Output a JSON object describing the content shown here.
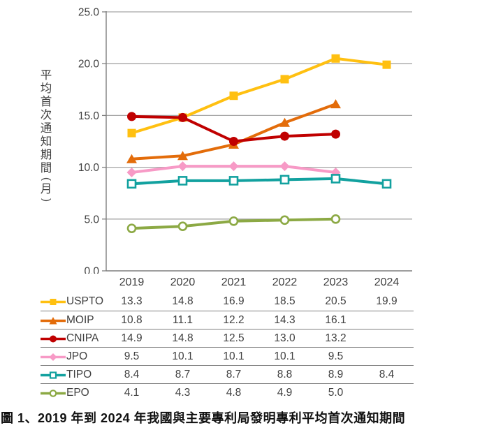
{
  "chart_data": {
    "type": "line",
    "title": "",
    "categories": [
      "2019",
      "2020",
      "2021",
      "2022",
      "2023",
      "2024"
    ],
    "series": [
      {
        "name": "USPTO",
        "color": "#FFC011",
        "marker": "square-filled",
        "values": [
          13.3,
          14.8,
          16.9,
          18.5,
          20.5,
          19.9
        ]
      },
      {
        "name": "MOIP",
        "color": "#E36C0A",
        "marker": "triangle-filled",
        "values": [
          10.8,
          11.1,
          12.2,
          14.3,
          16.1,
          null
        ]
      },
      {
        "name": "CNIPA",
        "color": "#C00000",
        "marker": "circle-filled",
        "values": [
          14.9,
          14.8,
          12.5,
          13.0,
          13.2,
          null
        ]
      },
      {
        "name": "JPO",
        "color": "#F79AC6",
        "marker": "diamond-filled",
        "values": [
          9.5,
          10.1,
          10.1,
          10.1,
          9.5,
          null
        ]
      },
      {
        "name": "TIPO",
        "color": "#12A19F",
        "marker": "square-open",
        "values": [
          8.4,
          8.7,
          8.7,
          8.8,
          8.9,
          8.4
        ]
      },
      {
        "name": "EPO",
        "color": "#8CA944",
        "marker": "circle-open",
        "values": [
          4.1,
          4.3,
          4.8,
          4.9,
          5.0,
          null
        ]
      }
    ],
    "xlabel": "",
    "ylabel": "平均首次通知期間(月)",
    "ylim": [
      0,
      25
    ],
    "ytick_step": 5,
    "ytick_labels": [
      "0.0",
      "5.0",
      "10.0",
      "15.0",
      "20.0",
      "25.0"
    ],
    "grid": true,
    "legend_position": "table-left"
  },
  "caption": "圖 1、2019 年到 2024 年我國與主要專利局發明專利平均首次通知期間",
  "colors": {
    "gridline": "#A6A6A6",
    "axis": "#7f7f7f",
    "tick_text": "#3f3f3f",
    "table_separator": "#7f7f7f",
    "background": "#ffffff"
  }
}
